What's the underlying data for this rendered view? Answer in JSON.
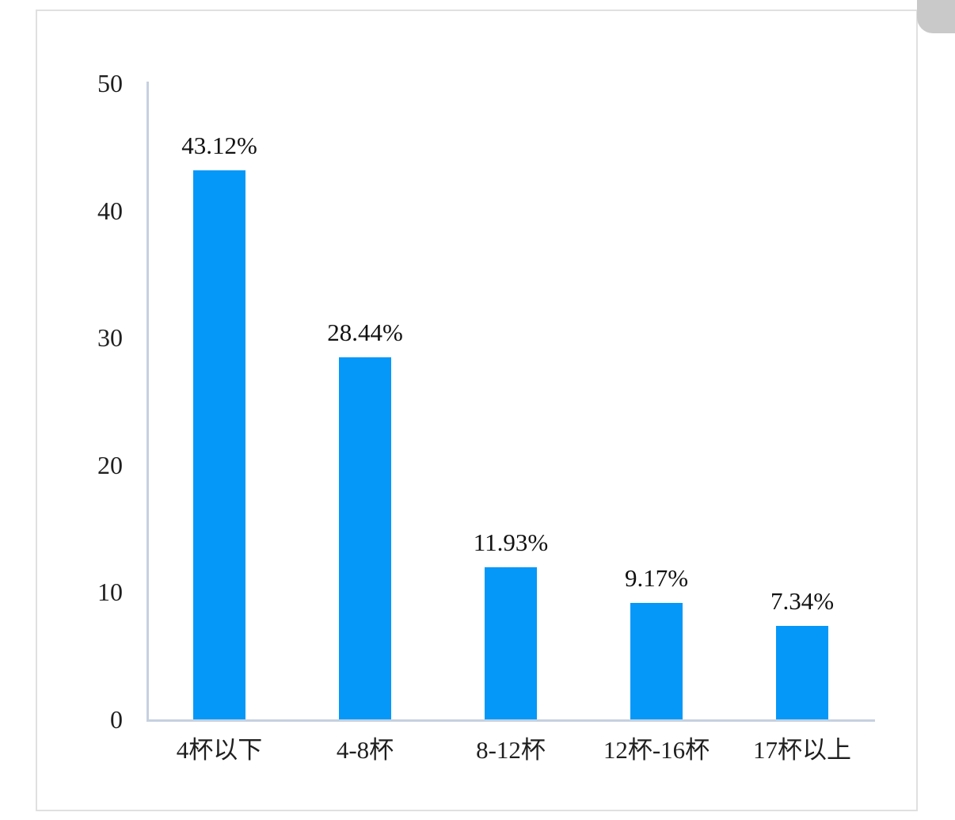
{
  "page": {
    "background_color": "#ffffff",
    "border_color": "#e0e0e0"
  },
  "scrollbar": {
    "thumb_color": "#c9c9c9"
  },
  "chart_data": {
    "type": "bar",
    "title": "",
    "xlabel": "",
    "ylabel": "",
    "categories": [
      "4杯以下",
      "4-8杯",
      "8-12杯",
      "12杯-16杯",
      "17杯以上"
    ],
    "values": [
      43.12,
      28.44,
      11.93,
      9.17,
      7.34
    ],
    "data_labels": [
      "43.12%",
      "28.44%",
      "11.93%",
      "9.17%",
      "7.34%"
    ],
    "ylim": [
      0,
      50
    ],
    "yticks": [
      0,
      10,
      20,
      30,
      40,
      50
    ],
    "grid": false,
    "legend": false,
    "bar_color": "#0598f8",
    "axis_color": "#c6d1df",
    "text_color": "#1f1f1f"
  }
}
